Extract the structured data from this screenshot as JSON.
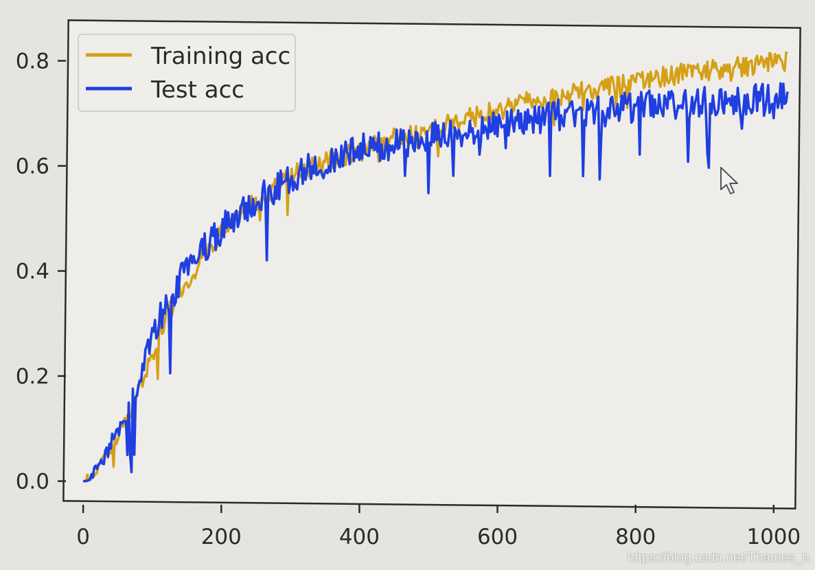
{
  "chart_data": {
    "type": "line",
    "title": "",
    "xlabel": "",
    "ylabel": "",
    "xlim": [
      -25,
      1035
    ],
    "ylim": [
      -0.045,
      0.87
    ],
    "x_ticks": [
      0,
      200,
      400,
      600,
      800,
      1000
    ],
    "y_ticks": [
      0.0,
      0.2,
      0.4,
      0.6,
      0.8
    ],
    "x_tick_labels": [
      "0",
      "200",
      "400",
      "600",
      "800",
      "1000"
    ],
    "y_tick_labels": [
      "0.0",
      "0.2",
      "0.4",
      "0.6",
      "0.8"
    ],
    "grid": false,
    "legend_position": "top-left",
    "series": [
      {
        "name": "Training acc",
        "color": "#d4a017",
        "noise": 0.02,
        "x": [
          0,
          20,
          40,
          60,
          80,
          100,
          120,
          140,
          160,
          180,
          200,
          220,
          240,
          260,
          280,
          300,
          320,
          340,
          360,
          380,
          400,
          420,
          440,
          460,
          480,
          500,
          520,
          540,
          560,
          580,
          600,
          620,
          640,
          660,
          680,
          700,
          720,
          740,
          760,
          780,
          800,
          820,
          840,
          860,
          880,
          900,
          920,
          940,
          960,
          980,
          1000,
          1020
        ],
        "y": [
          0.0,
          0.02,
          0.06,
          0.11,
          0.17,
          0.24,
          0.31,
          0.36,
          0.4,
          0.44,
          0.47,
          0.5,
          0.52,
          0.54,
          0.56,
          0.58,
          0.59,
          0.6,
          0.61,
          0.62,
          0.63,
          0.64,
          0.65,
          0.655,
          0.66,
          0.67,
          0.68,
          0.685,
          0.69,
          0.7,
          0.705,
          0.71,
          0.72,
          0.725,
          0.73,
          0.735,
          0.74,
          0.745,
          0.75,
          0.755,
          0.76,
          0.765,
          0.77,
          0.775,
          0.78,
          0.78,
          0.785,
          0.79,
          0.79,
          0.795,
          0.795,
          0.8
        ]
      },
      {
        "name": "Test acc",
        "color": "#1f3fe0",
        "noise": 0.03,
        "x": [
          0,
          20,
          40,
          60,
          80,
          100,
          120,
          140,
          160,
          180,
          200,
          220,
          240,
          260,
          280,
          300,
          320,
          340,
          360,
          380,
          400,
          420,
          440,
          460,
          480,
          500,
          520,
          540,
          560,
          580,
          600,
          620,
          640,
          660,
          680,
          700,
          720,
          740,
          760,
          780,
          800,
          820,
          840,
          860,
          880,
          900,
          920,
          940,
          960,
          980,
          1000,
          1020
        ],
        "y": [
          0.0,
          0.02,
          0.07,
          0.12,
          0.19,
          0.27,
          0.34,
          0.38,
          0.42,
          0.45,
          0.48,
          0.5,
          0.52,
          0.54,
          0.56,
          0.58,
          0.59,
          0.6,
          0.61,
          0.62,
          0.63,
          0.635,
          0.64,
          0.645,
          0.65,
          0.655,
          0.66,
          0.665,
          0.67,
          0.675,
          0.68,
          0.685,
          0.69,
          0.69,
          0.695,
          0.7,
          0.7,
          0.705,
          0.705,
          0.71,
          0.71,
          0.715,
          0.715,
          0.72,
          0.72,
          0.72,
          0.725,
          0.725,
          0.725,
          0.73,
          0.73,
          0.73
        ]
      }
    ]
  },
  "watermark": "https://blog.csdn.net/Thames_h"
}
